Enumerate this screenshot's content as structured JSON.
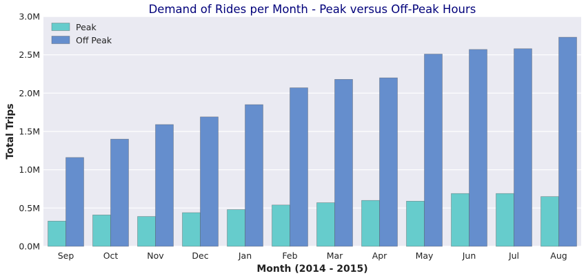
{
  "chart_data": {
    "type": "bar",
    "title": "Demand of Rides per Month - Peak versus Off-Peak Hours",
    "xlabel": "Month (2014 - 2015)",
    "ylabel": "Total Trips",
    "categories": [
      "Sep",
      "Oct",
      "Nov",
      "Dec",
      "Jan",
      "Feb",
      "Mar",
      "Apr",
      "May",
      "Jun",
      "Jul",
      "Aug"
    ],
    "series": [
      {
        "name": "Peak",
        "color": "#66cccc",
        "values": [
          0.33,
          0.41,
          0.39,
          0.44,
          0.48,
          0.54,
          0.57,
          0.6,
          0.59,
          0.69,
          0.69,
          0.65
        ]
      },
      {
        "name": "Off Peak",
        "color": "#658ecd",
        "values": [
          1.16,
          1.4,
          1.59,
          1.69,
          1.85,
          2.07,
          2.18,
          2.2,
          2.51,
          2.57,
          2.58,
          2.73
        ]
      }
    ],
    "ylim": [
      0,
      3.0
    ],
    "yticks": [
      0.0,
      0.5,
      1.0,
      1.5,
      2.0,
      2.5,
      3.0
    ],
    "ytick_labels": [
      "0.0M",
      "0.5M",
      "1.0M",
      "1.5M",
      "2.0M",
      "2.5M",
      "3.0M"
    ],
    "grid": true,
    "legend_position": "top-left",
    "background": "#eaeaf2"
  }
}
